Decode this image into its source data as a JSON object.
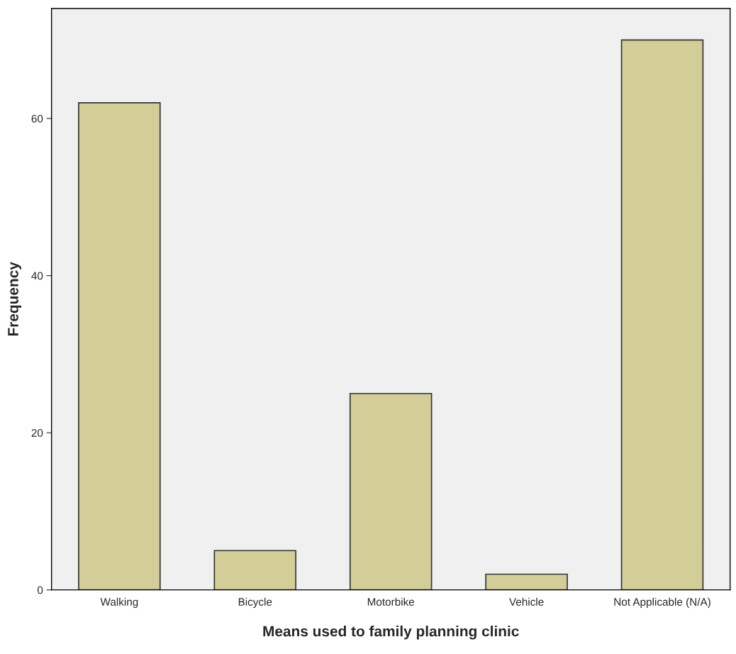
{
  "chart_data": {
    "type": "bar",
    "xlabel": "Means used to family planning clinic",
    "ylabel": "Frequency",
    "categories": [
      "Walking",
      "Bicycle",
      "Motorbike",
      "Vehicle",
      "Not Applicable (N/A)"
    ],
    "values": [
      62,
      5,
      25,
      2,
      70
    ],
    "color": "#d3ce97",
    "ylim": [
      0,
      74
    ],
    "yticks": [
      0,
      20,
      40,
      60
    ],
    "grid": false
  }
}
